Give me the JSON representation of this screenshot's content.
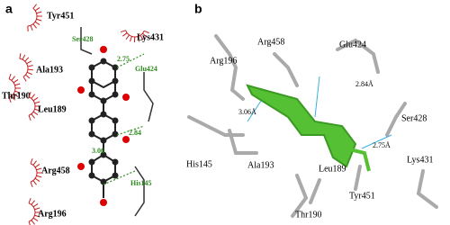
{
  "panel_a": {
    "label": "a",
    "residues": [
      "Tyr451",
      "Lys431",
      "Ala193",
      "Thr190",
      "Leu189",
      "Arg458",
      "Arg196"
    ],
    "hbond_residues": [
      "Ser428",
      "Glu424",
      "His145"
    ],
    "distances": [
      "2.75",
      "2.84",
      "3.06"
    ]
  },
  "panel_b": {
    "label": "b",
    "residues": [
      "Arg458",
      "Glu424",
      "Arg196",
      "Ser428",
      "His145",
      "Ala193",
      "Lys431",
      "Leu189",
      "Tyr451",
      "Thr190"
    ],
    "distances": [
      "2.84Å",
      "3.06Å",
      "2.75Å"
    ]
  }
}
